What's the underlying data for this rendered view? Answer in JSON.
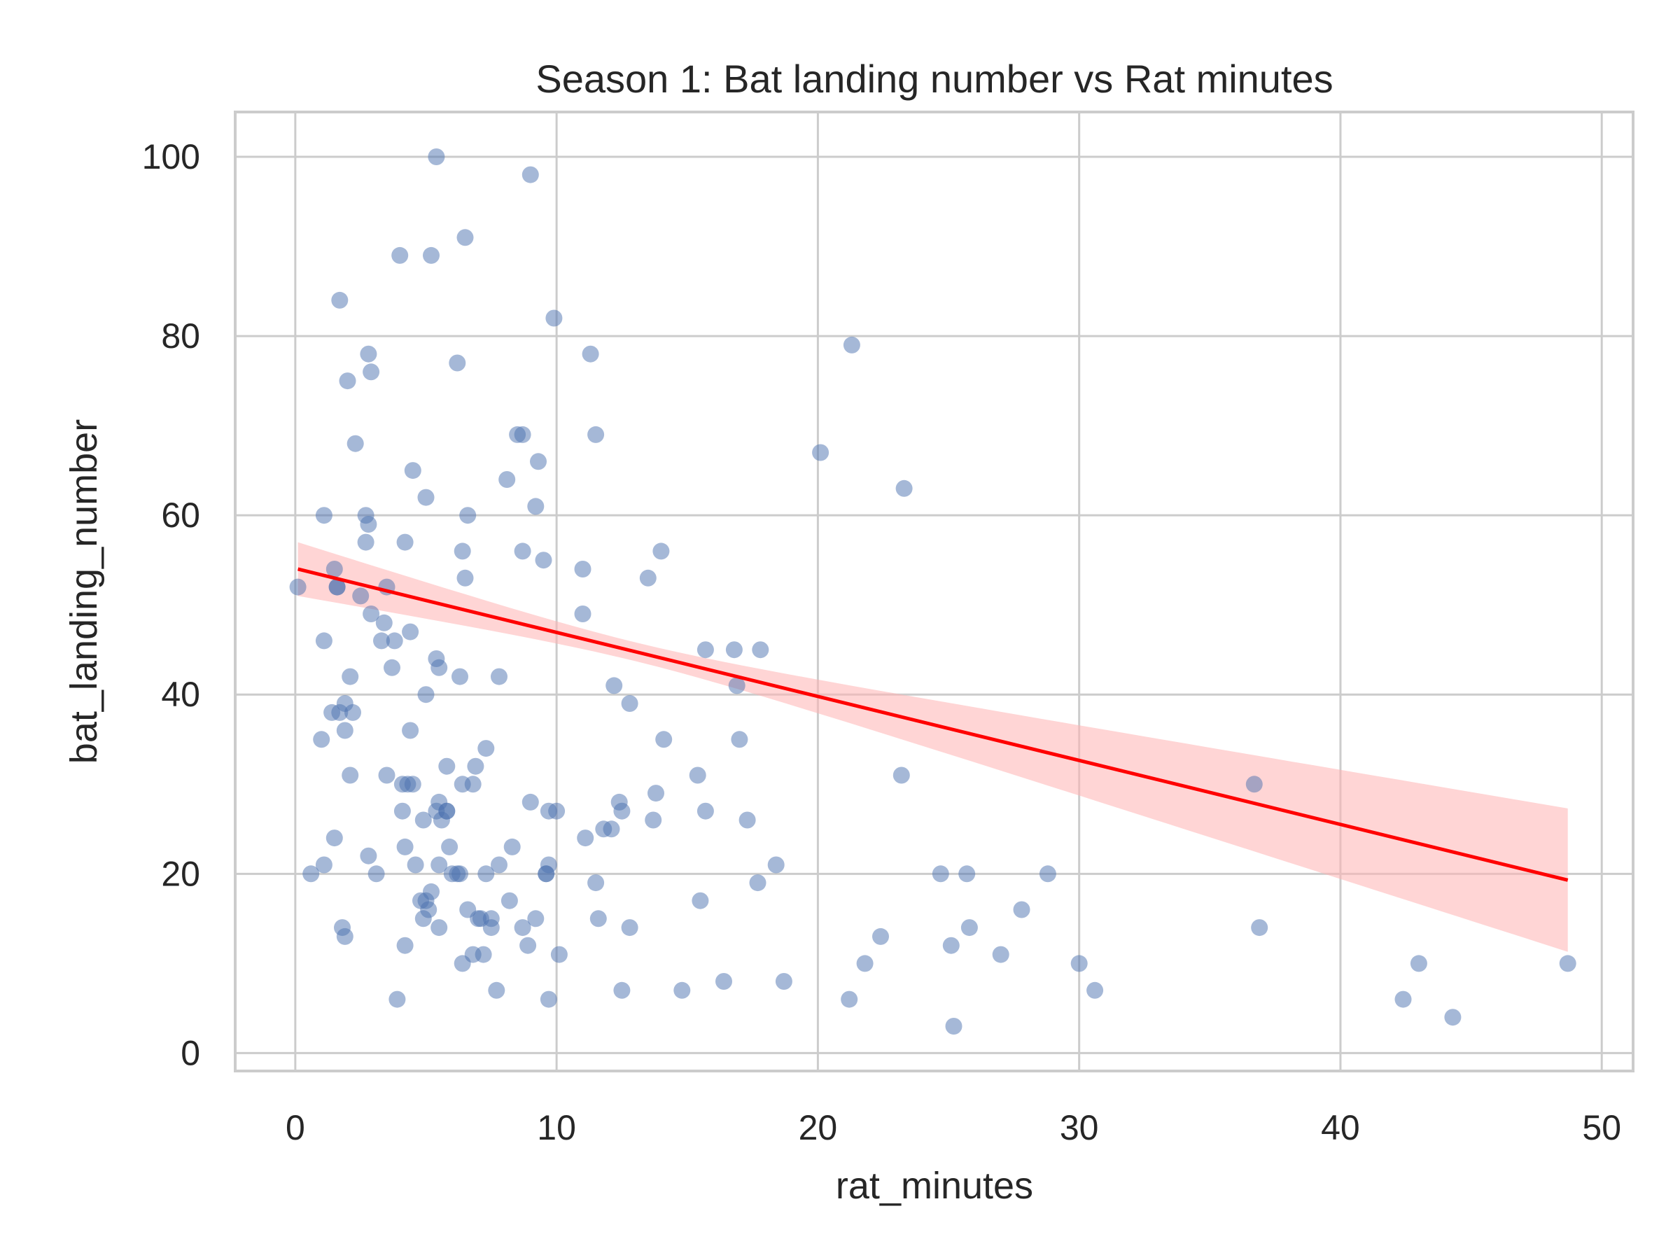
{
  "chart_data": {
    "type": "scatter",
    "title": "Season 1: Bat landing number vs Rat minutes",
    "xlabel": "rat_minutes",
    "ylabel": "bat_landing_number",
    "xlim": [
      -2.3,
      51.2
    ],
    "ylim": [
      -2,
      105
    ],
    "xticks": [
      0,
      10,
      20,
      30,
      40,
      50
    ],
    "yticks": [
      0,
      20,
      40,
      60,
      80,
      100
    ],
    "grid": true,
    "colors": {
      "points": "#4c72b0",
      "regression_line": "#ff0000",
      "confidence_band": "#ffb3b3"
    },
    "points": [
      [
        5.4,
        100
      ],
      [
        9.0,
        98
      ],
      [
        6.5,
        91
      ],
      [
        4.0,
        89
      ],
      [
        5.2,
        89
      ],
      [
        1.7,
        84
      ],
      [
        9.9,
        82
      ],
      [
        2.8,
        78
      ],
      [
        11.3,
        78
      ],
      [
        21.3,
        79
      ],
      [
        2.0,
        75
      ],
      [
        2.9,
        76
      ],
      [
        6.2,
        77
      ],
      [
        2.3,
        68
      ],
      [
        8.5,
        69
      ],
      [
        11.5,
        69
      ],
      [
        20.1,
        67
      ],
      [
        4.5,
        65
      ],
      [
        8.1,
        64
      ],
      [
        9.3,
        66
      ],
      [
        23.3,
        63
      ],
      [
        5.0,
        62
      ],
      [
        9.2,
        61
      ],
      [
        2.7,
        60
      ],
      [
        6.6,
        60
      ],
      [
        2.8,
        59
      ],
      [
        2.7,
        57
      ],
      [
        4.2,
        57
      ],
      [
        6.4,
        56
      ],
      [
        8.7,
        56
      ],
      [
        14.0,
        56
      ],
      [
        6.5,
        53
      ],
      [
        13.5,
        53
      ],
      [
        1.6,
        52
      ],
      [
        2.5,
        51
      ],
      [
        3.5,
        52
      ],
      [
        11.0,
        49
      ],
      [
        2.9,
        49
      ],
      [
        3.3,
        46
      ],
      [
        4.4,
        47
      ],
      [
        5.4,
        44
      ],
      [
        3.8,
        46
      ],
      [
        5.5,
        43
      ],
      [
        3.7,
        43
      ],
      [
        7.8,
        42
      ],
      [
        15.7,
        45
      ],
      [
        16.8,
        45
      ],
      [
        17.8,
        45
      ],
      [
        16.9,
        41
      ],
      [
        12.2,
        41
      ],
      [
        12.8,
        39
      ],
      [
        1.9,
        39
      ],
      [
        7.3,
        34
      ],
      [
        17.0,
        35
      ],
      [
        4.4,
        36
      ],
      [
        5.0,
        40
      ],
      [
        3.5,
        31
      ],
      [
        4.1,
        30
      ],
      [
        4.3,
        30
      ],
      [
        6.4,
        30
      ],
      [
        6.8,
        30
      ],
      [
        6.9,
        32
      ],
      [
        9.0,
        28
      ],
      [
        5.5,
        28
      ],
      [
        5.4,
        27
      ],
      [
        5.6,
        26
      ],
      [
        5.8,
        27
      ],
      [
        9.7,
        27
      ],
      [
        10.0,
        27
      ],
      [
        12.4,
        28
      ],
      [
        12.5,
        27
      ],
      [
        13.8,
        29
      ],
      [
        13.7,
        26
      ],
      [
        15.4,
        31
      ],
      [
        15.7,
        27
      ],
      [
        11.8,
        25
      ],
      [
        12.1,
        25
      ],
      [
        5.9,
        23
      ],
      [
        8.3,
        23
      ],
      [
        9.7,
        21
      ],
      [
        9.6,
        20
      ],
      [
        4.6,
        21
      ],
      [
        5.5,
        21
      ],
      [
        6.0,
        20
      ],
      [
        6.2,
        20
      ],
      [
        7.3,
        20
      ],
      [
        18.4,
        21
      ],
      [
        17.7,
        19
      ],
      [
        24.7,
        20
      ],
      [
        25.7,
        20
      ],
      [
        11.5,
        19
      ],
      [
        8.2,
        17
      ],
      [
        5.0,
        17
      ],
      [
        7.1,
        15
      ],
      [
        7.5,
        15
      ],
      [
        9.2,
        15
      ],
      [
        11.6,
        15
      ],
      [
        15.5,
        17
      ],
      [
        27.8,
        16
      ],
      [
        8.7,
        14
      ],
      [
        25.8,
        14
      ],
      [
        22.4,
        13
      ],
      [
        25.1,
        12
      ],
      [
        36.9,
        14
      ],
      [
        21.8,
        10
      ],
      [
        30.0,
        10
      ],
      [
        12.5,
        7
      ],
      [
        21.2,
        6
      ],
      [
        36.7,
        30
      ],
      [
        0.1,
        52
      ],
      [
        1.1,
        60
      ],
      [
        1.1,
        46
      ],
      [
        1.5,
        54
      ],
      [
        1.6,
        52
      ],
      [
        2.1,
        42
      ],
      [
        1.4,
        38
      ],
      [
        1.7,
        38
      ],
      [
        2.2,
        38
      ],
      [
        1.9,
        36
      ],
      [
        1.0,
        35
      ],
      [
        2.1,
        31
      ],
      [
        1.5,
        24
      ],
      [
        1.1,
        21
      ],
      [
        0.6,
        20
      ],
      [
        2.8,
        22
      ],
      [
        3.1,
        20
      ],
      [
        1.8,
        14
      ],
      [
        1.9,
        13
      ],
      [
        3.4,
        48
      ],
      [
        6.3,
        42
      ],
      [
        5.8,
        32
      ],
      [
        4.5,
        30
      ],
      [
        4.1,
        27
      ],
      [
        4.2,
        23
      ],
      [
        4.9,
        26
      ],
      [
        5.8,
        27
      ],
      [
        4.8,
        17
      ],
      [
        5.1,
        16
      ],
      [
        5.2,
        18
      ],
      [
        6.3,
        20
      ],
      [
        7.8,
        21
      ],
      [
        9.6,
        20
      ],
      [
        4.9,
        15
      ],
      [
        5.5,
        14
      ],
      [
        6.6,
        16
      ],
      [
        7.0,
        15
      ],
      [
        7.5,
        14
      ],
      [
        8.9,
        12
      ],
      [
        4.2,
        12
      ],
      [
        6.4,
        10
      ],
      [
        6.8,
        11
      ],
      [
        7.2,
        11
      ],
      [
        3.9,
        6
      ],
      [
        7.7,
        7
      ],
      [
        10.1,
        11
      ],
      [
        9.7,
        6
      ],
      [
        8.7,
        69
      ],
      [
        9.5,
        55
      ],
      [
        11.0,
        54
      ],
      [
        11.1,
        24
      ],
      [
        12.8,
        14
      ],
      [
        14.1,
        35
      ],
      [
        17.3,
        26
      ],
      [
        14.8,
        7
      ],
      [
        16.4,
        8
      ],
      [
        18.7,
        8
      ],
      [
        23.2,
        31
      ],
      [
        27.0,
        11
      ],
      [
        28.8,
        20
      ],
      [
        30.6,
        7
      ],
      [
        25.2,
        3
      ],
      [
        42.4,
        6
      ],
      [
        43.0,
        10
      ],
      [
        44.3,
        4
      ],
      [
        48.7,
        10
      ]
    ],
    "regression": {
      "x_range": [
        0.1,
        48.7
      ],
      "y_at_start": 54.0,
      "y_at_end": 19.3,
      "ci_upper_start": 57.0,
      "ci_lower_start": 51.0,
      "ci_upper_end": 27.7,
      "ci_lower_end": 11.7,
      "ci_center_x": 13.0
    }
  }
}
